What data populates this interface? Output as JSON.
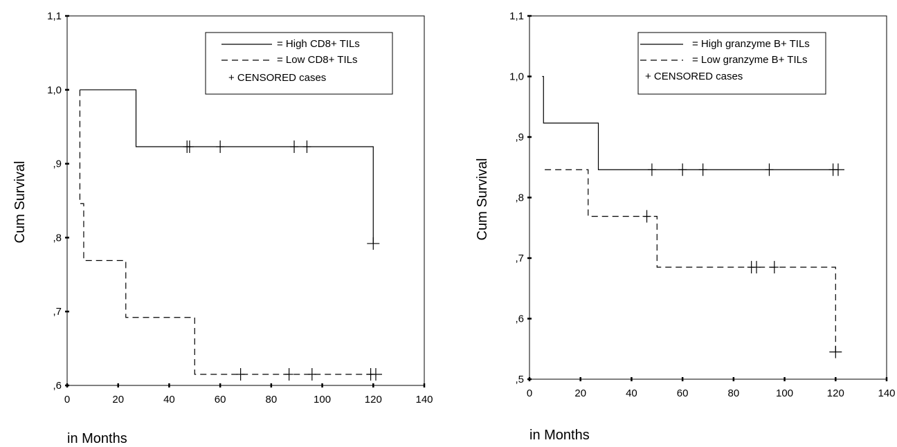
{
  "chart_data": [
    {
      "type": "line",
      "subtype": "kaplan-meier-step",
      "xlabel": "in Months",
      "ylabel": "Cum Survival",
      "xlim": [
        0,
        140
      ],
      "ylim": [
        0.6,
        1.1
      ],
      "x_ticks": [
        "0",
        "20",
        "40",
        "60",
        "80",
        "100",
        "120",
        "140"
      ],
      "y_ticks": [
        ",6",
        ",7",
        ",8",
        ",9",
        "1,0",
        "1,1"
      ],
      "legend_position": "top-right",
      "legend": [
        "= High CD8+ TILs",
        "= Low CD8+ TILs",
        "+ CENSORED cases"
      ],
      "series": [
        {
          "name": "High CD8+ TILs",
          "line_style": "solid",
          "steps": [
            [
              5,
              1.0
            ],
            [
              27,
              0.923
            ],
            [
              120,
              0.792
            ]
          ],
          "end": 120,
          "censored": [
            [
              47,
              0.923
            ],
            [
              48,
              0.923
            ],
            [
              60,
              0.923
            ],
            [
              89,
              0.923
            ],
            [
              94,
              0.923
            ],
            [
              120,
              0.792
            ]
          ]
        },
        {
          "name": "Low CD8+ TILs",
          "line_style": "dashed",
          "steps": [
            [
              5,
              1.0
            ],
            [
              5,
              0.846
            ],
            [
              6.5,
              0.769
            ],
            [
              23,
              0.692
            ],
            [
              50,
              0.615
            ]
          ],
          "end": 121,
          "censored": [
            [
              68,
              0.615
            ],
            [
              87,
              0.615
            ],
            [
              96,
              0.615
            ],
            [
              119,
              0.615
            ],
            [
              121,
              0.615
            ]
          ]
        }
      ]
    },
    {
      "type": "line",
      "subtype": "kaplan-meier-step",
      "xlabel": "in Months",
      "ylabel": "Cum Survival",
      "xlim": [
        0,
        140
      ],
      "ylim": [
        0.5,
        1.1
      ],
      "x_ticks": [
        "0",
        "20",
        "40",
        "60",
        "80",
        "100",
        "120",
        "140"
      ],
      "y_ticks": [
        ",5",
        ",6",
        ",7",
        ",8",
        ",9",
        "1,0",
        "1,1"
      ],
      "legend_position": "top-right",
      "legend": [
        "= High granzyme B+ TILs",
        "= Low granzyme B+  TILs",
        "+ CENSORED cases"
      ],
      "series": [
        {
          "name": "High granzyme B+ TILs",
          "line_style": "solid",
          "steps": [
            [
              5,
              1.0
            ],
            [
              5.5,
              0.923
            ],
            [
              27,
              0.846
            ]
          ],
          "end": 121,
          "censored": [
            [
              48,
              0.846
            ],
            [
              60,
              0.846
            ],
            [
              68,
              0.846
            ],
            [
              94,
              0.846
            ],
            [
              119,
              0.846
            ],
            [
              121,
              0.846
            ]
          ]
        },
        {
          "name": "Low granzyme B+ TILs",
          "line_style": "dashed",
          "steps": [
            [
              6,
              0.846
            ],
            [
              23,
              0.769
            ],
            [
              50,
              0.685
            ],
            [
              120,
              0.545
            ]
          ],
          "end": 120,
          "censored": [
            [
              46,
              0.769
            ],
            [
              87,
              0.685
            ],
            [
              89,
              0.685
            ],
            [
              96,
              0.685
            ],
            [
              120,
              0.545
            ]
          ]
        }
      ]
    }
  ]
}
